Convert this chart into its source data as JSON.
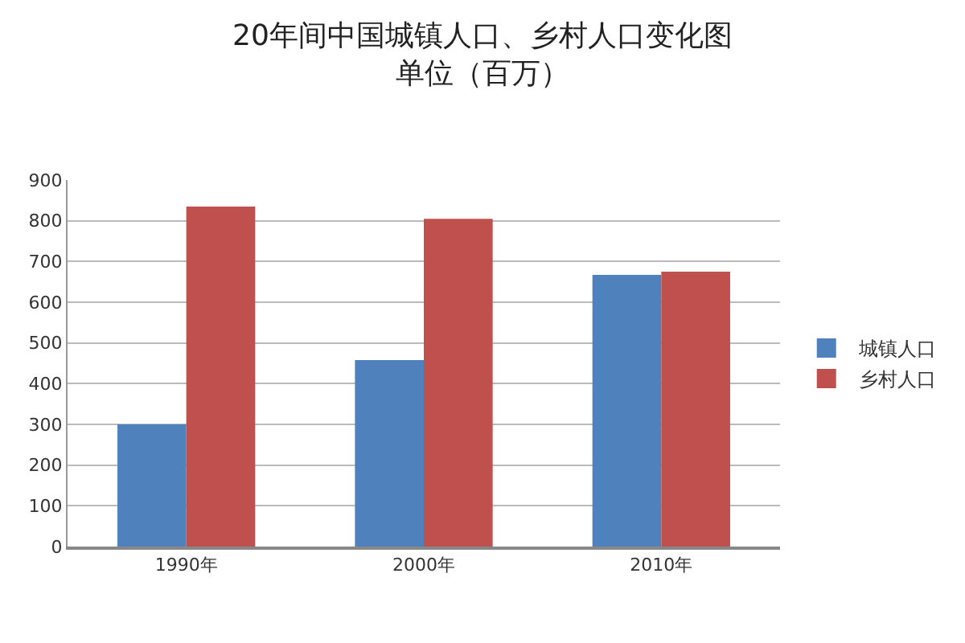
{
  "chart_data": {
    "type": "bar",
    "title": "20年间中国城镇人口、乡村人口变化图",
    "subtitle": "单位（百万）",
    "categories": [
      "1990年",
      "2000年",
      "2010年"
    ],
    "series": [
      {
        "name": "城镇人口",
        "color": "#4f81bd",
        "values": [
          300,
          458,
          667
        ]
      },
      {
        "name": "乡村人口",
        "color": "#c0504d",
        "values": [
          835,
          805,
          675
        ]
      }
    ],
    "ylim": [
      0,
      900
    ],
    "yticks": [
      0,
      100,
      200,
      300,
      400,
      500,
      600,
      700,
      800,
      900
    ],
    "grid": "y",
    "legend": "right"
  }
}
